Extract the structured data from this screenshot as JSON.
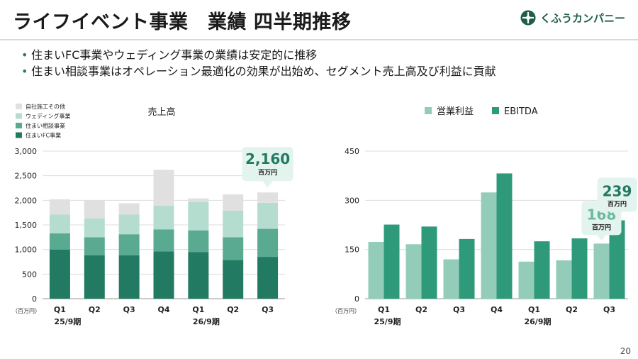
{
  "header": {
    "title": "ライフイベント事業　業績 四半期推移",
    "logo_text": "くふうカンパニー"
  },
  "bullets": [
    "住まいFC事業やウェディング事業の業績は安定的に推移",
    "住まい相談事業はオペレーション最適化の効果が出始め、セグメント売上高及び利益に貢献"
  ],
  "colors": {
    "fc": "#237a62",
    "soudan": "#5aaa92",
    "wedding": "#b4ddd0",
    "other": "#e0e0e0",
    "op_profit": "#93cdb9",
    "ebitda": "#2f9a7a",
    "callout_bg": "#e3f3ed",
    "callout_dark": "#237a62",
    "callout_light": "#6cb99e"
  },
  "page_number": "20",
  "chart_data": [
    {
      "type": "bar",
      "stacked": true,
      "title": "売上高",
      "unit": "（百万円）",
      "categories": [
        "Q1",
        "Q2",
        "Q3",
        "Q4",
        "Q1",
        "Q2",
        "Q3"
      ],
      "groups": [
        {
          "label": "25/9期",
          "start": 0,
          "end": 3
        },
        {
          "label": "26/9期",
          "start": 4,
          "end": 6
        }
      ],
      "ylim": [
        0,
        3000
      ],
      "yticks": [
        0,
        500,
        1000,
        1500,
        2000,
        2500,
        3000
      ],
      "ytick_labels": [
        "0",
        "500",
        "1,000",
        "1,500",
        "2,000",
        "2,500",
        "3,000"
      ],
      "grid": true,
      "legend_position": "top-left",
      "series": [
        {
          "name": "住まいFC事業",
          "color_key": "fc",
          "values": [
            1000,
            880,
            880,
            960,
            950,
            790,
            850
          ]
        },
        {
          "name": "住まい相談事業",
          "color_key": "soudan",
          "values": [
            330,
            370,
            430,
            450,
            440,
            460,
            570
          ]
        },
        {
          "name": "ウェディング事業",
          "color_key": "wedding",
          "values": [
            380,
            380,
            400,
            480,
            580,
            540,
            530
          ]
        },
        {
          "name": "自社施工その他",
          "color_key": "other",
          "values": [
            310,
            370,
            230,
            730,
            70,
            330,
            210
          ]
        }
      ],
      "callouts": [
        {
          "index": 6,
          "value_label": "2,160",
          "unit_label": "百万円"
        }
      ]
    },
    {
      "type": "bar",
      "unit": "（百万円）",
      "categories": [
        "Q1",
        "Q2",
        "Q3",
        "Q4",
        "Q1",
        "Q2",
        "Q3"
      ],
      "groups": [
        {
          "label": "25/9期",
          "start": 0,
          "end": 3
        },
        {
          "label": "26/9期",
          "start": 4,
          "end": 6
        }
      ],
      "ylim": [
        0,
        450
      ],
      "yticks": [
        0,
        150,
        300,
        450
      ],
      "ytick_labels": [
        "0",
        "150",
        "300",
        "450"
      ],
      "grid": true,
      "legend_position": "top",
      "series": [
        {
          "name": "営業利益",
          "color_key": "op_profit",
          "values": [
            173,
            166,
            120,
            324,
            113,
            117,
            168
          ]
        },
        {
          "name": "EBITDA",
          "color_key": "ebitda",
          "values": [
            226,
            220,
            182,
            382,
            175,
            184,
            239
          ]
        }
      ],
      "callouts": [
        {
          "series": 0,
          "index": 6,
          "value_label": "168",
          "unit_label": "百万円"
        },
        {
          "series": 1,
          "index": 6,
          "value_label": "239",
          "unit_label": "百万円"
        }
      ]
    }
  ]
}
